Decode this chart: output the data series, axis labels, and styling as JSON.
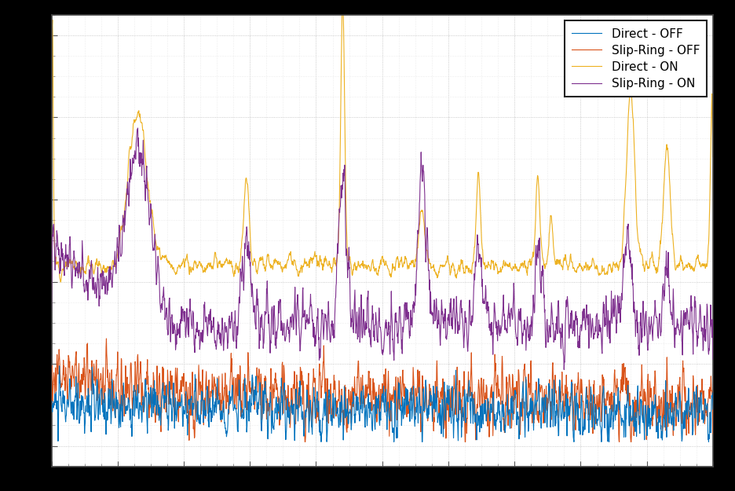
{
  "colors": {
    "direct_off": "#0072BD",
    "slipring_off": "#D95319",
    "direct_on": "#EDB120",
    "slipring_on": "#7E2F8E"
  },
  "legend_labels": [
    "Direct - OFF",
    "Slip-Ring - OFF",
    "Direct - ON",
    "Slip-Ring - ON"
  ],
  "background_color": "#ffffff",
  "outer_background": "#000000",
  "grid_color": "#d0d0d0",
  "figsize": [
    9.36,
    6.25
  ],
  "dpi": 100,
  "n_points": 2000,
  "ylim": [
    -0.05,
    1.05
  ],
  "seeds": [
    10,
    11,
    12,
    13
  ]
}
